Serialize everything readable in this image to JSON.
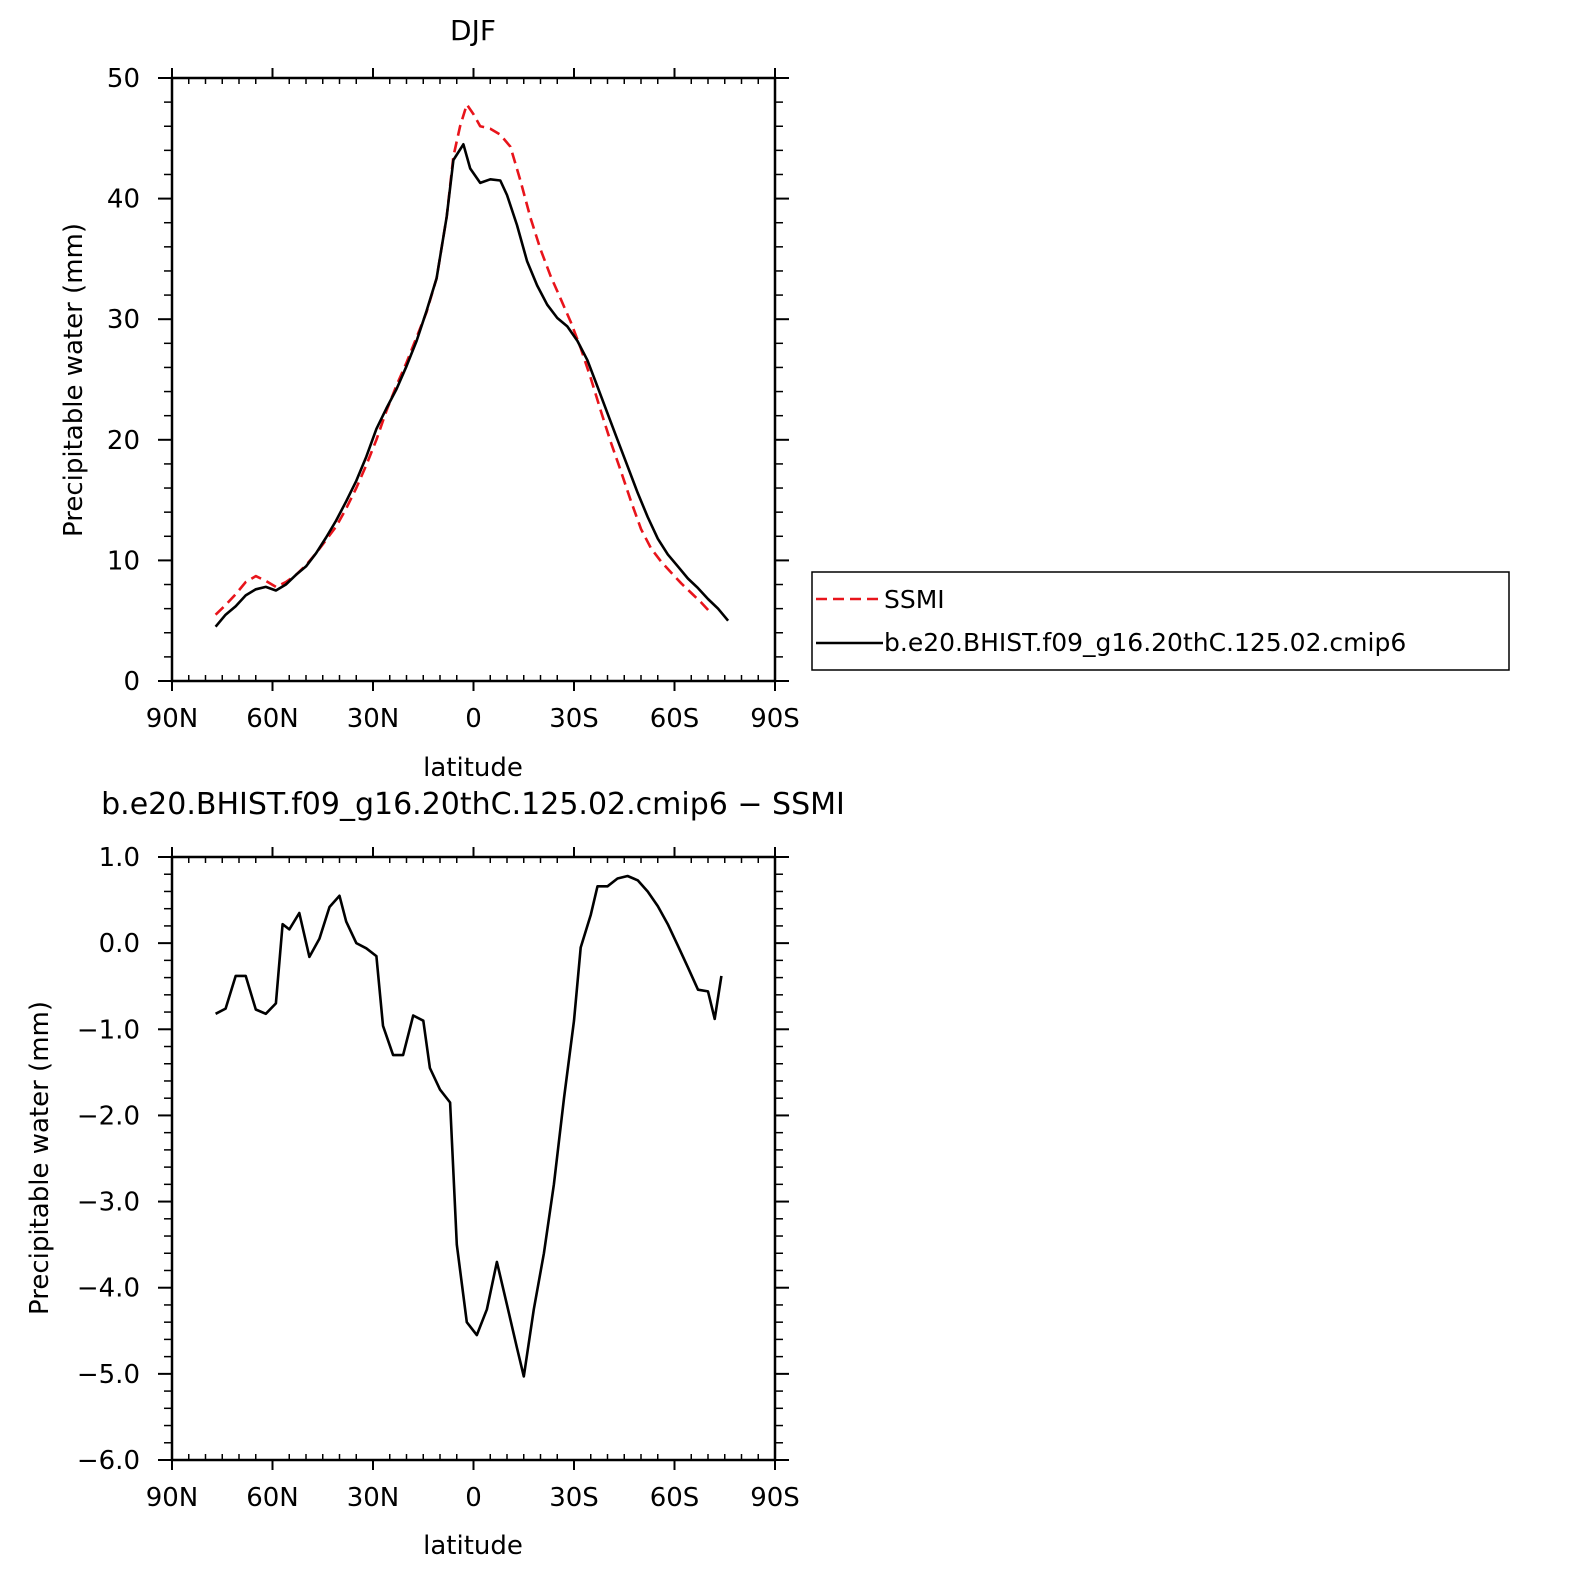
{
  "chart_data": [
    {
      "type": "line",
      "title": "DJF",
      "xlabel": "latitude",
      "ylabel": "Precipitable water (mm)",
      "xlim": [
        90,
        -90
      ],
      "ylim": [
        0,
        50
      ],
      "x_ticks": [
        90,
        60,
        30,
        0,
        -30,
        -60,
        -90
      ],
      "x_tick_labels": [
        "90N",
        "60N",
        "30N",
        "0",
        "30S",
        "60S",
        "90S"
      ],
      "y_ticks": [
        0,
        10,
        20,
        30,
        40,
        50
      ],
      "y_tick_labels": [
        "0",
        "10",
        "20",
        "30",
        "40",
        "50"
      ],
      "legend_position": "right",
      "series": [
        {
          "name": "SSMI",
          "color": "#e8141b",
          "style": "dashed",
          "points": [
            [
              77,
              5.5
            ],
            [
              74,
              6.3
            ],
            [
              71,
              7.2
            ],
            [
              68,
              8.2
            ],
            [
              65,
              8.7
            ],
            [
              62,
              8.3
            ],
            [
              59,
              7.8
            ],
            [
              56,
              8.2
            ],
            [
              53,
              8.8
            ],
            [
              50,
              9.6
            ],
            [
              47,
              10.6
            ],
            [
              44,
              11.7
            ],
            [
              41,
              12.8
            ],
            [
              38,
              14.3
            ],
            [
              35,
              16.0
            ],
            [
              32,
              17.9
            ],
            [
              29,
              20.0
            ],
            [
              26,
              22.4
            ],
            [
              23,
              24.5
            ],
            [
              20,
              26.4
            ],
            [
              17,
              28.5
            ],
            [
              14,
              30.6
            ],
            [
              11,
              33.4
            ],
            [
              8,
              38.5
            ],
            [
              6,
              43.5
            ],
            [
              4,
              46.0
            ],
            [
              2,
              47.8
            ],
            [
              0,
              47.0
            ],
            [
              -2,
              46.0
            ],
            [
              -5,
              45.8
            ],
            [
              -8,
              45.3
            ],
            [
              -11,
              44.3
            ],
            [
              -14,
              41.5
            ],
            [
              -17,
              38.4
            ],
            [
              -20,
              35.8
            ],
            [
              -23,
              33.6
            ],
            [
              -26,
              31.7
            ],
            [
              -29,
              29.8
            ],
            [
              -32,
              27.6
            ],
            [
              -35,
              25.1
            ],
            [
              -38,
              22.4
            ],
            [
              -41,
              19.8
            ],
            [
              -44,
              17.4
            ],
            [
              -47,
              14.9
            ],
            [
              -50,
              12.6
            ],
            [
              -53,
              11.0
            ],
            [
              -56,
              9.9
            ],
            [
              -59,
              9.0
            ],
            [
              -62,
              8.1
            ],
            [
              -65,
              7.3
            ],
            [
              -68,
              6.5
            ],
            [
              -71,
              5.6
            ]
          ]
        },
        {
          "name": "b.e20.BHIST.f09_g16.20thC.125.02.cmip6",
          "color": "#000000",
          "style": "solid",
          "points": [
            [
              77,
              4.5
            ],
            [
              74,
              5.5
            ],
            [
              71,
              6.2
            ],
            [
              68,
              7.1
            ],
            [
              65,
              7.6
            ],
            [
              62,
              7.8
            ],
            [
              59,
              7.5
            ],
            [
              56,
              8.0
            ],
            [
              53,
              8.8
            ],
            [
              50,
              9.5
            ],
            [
              47,
              10.6
            ],
            [
              44,
              11.9
            ],
            [
              41,
              13.3
            ],
            [
              38,
              14.9
            ],
            [
              35,
              16.6
            ],
            [
              32,
              18.6
            ],
            [
              29,
              20.9
            ],
            [
              26,
              22.6
            ],
            [
              23,
              24.2
            ],
            [
              20,
              26.1
            ],
            [
              17,
              28.2
            ],
            [
              14,
              30.7
            ],
            [
              11,
              33.4
            ],
            [
              8,
              38.5
            ],
            [
              6,
              43.2
            ],
            [
              3,
              44.5
            ],
            [
              1,
              42.5
            ],
            [
              -2,
              41.3
            ],
            [
              -5,
              41.6
            ],
            [
              -8,
              41.5
            ],
            [
              -10,
              40.3
            ],
            [
              -13,
              37.8
            ],
            [
              -16,
              34.8
            ],
            [
              -19,
              32.8
            ],
            [
              -22,
              31.2
            ],
            [
              -25,
              30.1
            ],
            [
              -28,
              29.4
            ],
            [
              -31,
              28.2
            ],
            [
              -34,
              26.6
            ],
            [
              -37,
              24.4
            ],
            [
              -40,
              22.2
            ],
            [
              -43,
              20.0
            ],
            [
              -46,
              17.8
            ],
            [
              -49,
              15.6
            ],
            [
              -52,
              13.6
            ],
            [
              -55,
              11.8
            ],
            [
              -58,
              10.5
            ],
            [
              -61,
              9.5
            ],
            [
              -64,
              8.5
            ],
            [
              -67,
              7.7
            ],
            [
              -70,
              6.8
            ],
            [
              -73,
              6.0
            ],
            [
              -76,
              5.0
            ]
          ]
        }
      ]
    },
    {
      "type": "line",
      "title": "b.e20.BHIST.f09_g16.20thC.125.02.cmip6 − SSMI",
      "xlabel": "latitude",
      "ylabel": "Precipitable water (mm)",
      "xlim": [
        90,
        -90
      ],
      "ylim": [
        -6.0,
        1.0
      ],
      "x_ticks": [
        90,
        60,
        30,
        0,
        -30,
        -60,
        -90
      ],
      "x_tick_labels": [
        "90N",
        "60N",
        "30N",
        "0",
        "30S",
        "60S",
        "90S"
      ],
      "y_ticks": [
        1.0,
        0.0,
        -1.0,
        -2.0,
        -3.0,
        -4.0,
        -5.0,
        -6.0
      ],
      "y_tick_labels": [
        "1.0",
        "0.0",
        "−1.0",
        "−2.0",
        "−3.0",
        "−4.0",
        "−5.0",
        "−6.0"
      ],
      "series": [
        {
          "color": "#000000",
          "style": "solid",
          "points": [
            [
              77,
              -0.82
            ],
            [
              74,
              -0.76
            ],
            [
              71,
              -0.38
            ],
            [
              68,
              -0.38
            ],
            [
              65,
              -0.77
            ],
            [
              62,
              -0.82
            ],
            [
              59,
              -0.7
            ],
            [
              57,
              0.22
            ],
            [
              55,
              0.16
            ],
            [
              52,
              0.35
            ],
            [
              49,
              -0.16
            ],
            [
              46,
              0.05
            ],
            [
              43,
              0.42
            ],
            [
              40,
              0.55
            ],
            [
              38,
              0.25
            ],
            [
              35,
              0.0
            ],
            [
              32,
              -0.06
            ],
            [
              29,
              -0.15
            ],
            [
              27,
              -0.96
            ],
            [
              24,
              -1.3
            ],
            [
              21,
              -1.3
            ],
            [
              18,
              -0.84
            ],
            [
              15,
              -0.9
            ],
            [
              13,
              -1.45
            ],
            [
              10,
              -1.7
            ],
            [
              7,
              -1.85
            ],
            [
              5,
              -3.5
            ],
            [
              2,
              -4.4
            ],
            [
              -1,
              -4.55
            ],
            [
              -4,
              -4.25
            ],
            [
              -7,
              -3.7
            ],
            [
              -10,
              -4.2
            ],
            [
              -13,
              -4.7
            ],
            [
              -15,
              -5.03
            ],
            [
              -18,
              -4.25
            ],
            [
              -21,
              -3.6
            ],
            [
              -24,
              -2.8
            ],
            [
              -27,
              -1.8
            ],
            [
              -30,
              -0.9
            ],
            [
              -32,
              -0.05
            ],
            [
              -35,
              0.33
            ],
            [
              -37,
              0.66
            ],
            [
              -40,
              0.66
            ],
            [
              -43,
              0.75
            ],
            [
              -46,
              0.78
            ],
            [
              -49,
              0.73
            ],
            [
              -52,
              0.6
            ],
            [
              -55,
              0.43
            ],
            [
              -58,
              0.22
            ],
            [
              -61,
              -0.03
            ],
            [
              -64,
              -0.28
            ],
            [
              -67,
              -0.54
            ],
            [
              -70,
              -0.56
            ],
            [
              -72,
              -0.88
            ],
            [
              -74,
              -0.38
            ]
          ]
        }
      ]
    }
  ]
}
